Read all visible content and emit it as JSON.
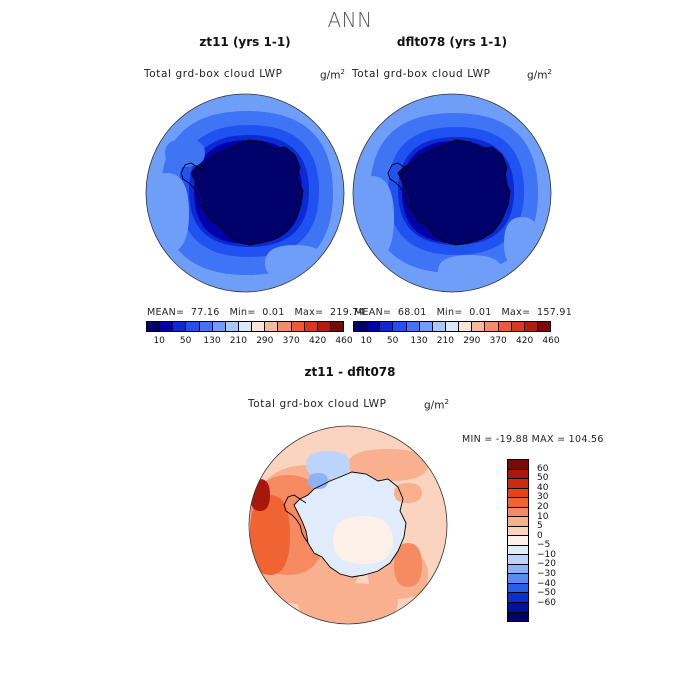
{
  "page_title": "ANN",
  "chart_data": [
    {
      "type": "heatmap",
      "title": "zt11 (yrs 1-1)",
      "variable_label": "Total grd-box cloud LWP",
      "units": "g/m",
      "units_exponent": "2",
      "stats": {
        "mean": "77.16",
        "min": "0.01",
        "max": "219.74"
      },
      "colorbar": {
        "levels": [
          "10",
          "50",
          "130",
          "210",
          "290",
          "370",
          "420",
          "460"
        ],
        "colors": [
          "#00006a",
          "#0000a8",
          "#0a2ad4",
          "#1f52f0",
          "#3f74f5",
          "#6f9ef8",
          "#a8c8fb",
          "#d8e8fd",
          "#fde4d6",
          "#f8b89c",
          "#f48c6a",
          "#ea5c36",
          "#d8391a",
          "#b21e0c",
          "#7a0a04"
        ]
      }
    },
    {
      "type": "heatmap",
      "title": "dflt078 (yrs 1-1)",
      "variable_label": "Total grd-box cloud LWP",
      "units": "g/m",
      "units_exponent": "2",
      "stats": {
        "mean": "68.01",
        "min": "0.01",
        "max": "157.91"
      },
      "colorbar": {
        "levels": [
          "10",
          "50",
          "130",
          "210",
          "290",
          "370",
          "420",
          "460"
        ],
        "colors": [
          "#00006a",
          "#0000a8",
          "#0a2ad4",
          "#1f52f0",
          "#3f74f5",
          "#6f9ef8",
          "#a8c8fb",
          "#d8e8fd",
          "#fde4d6",
          "#f8b89c",
          "#f48c6a",
          "#ea5c36",
          "#d8391a",
          "#b21e0c",
          "#7a0a04"
        ]
      }
    },
    {
      "type": "heatmap",
      "title": "zt11 - dflt078",
      "variable_label": "Total grd-box cloud LWP",
      "units": "g/m",
      "units_exponent": "2",
      "stats": {
        "min": "-19.88",
        "max": "104.56"
      },
      "stats_text": "MIN = -19.88 MAX = 104.56",
      "colorbar": {
        "levels": [
          "60",
          "50",
          "40",
          "30",
          "20",
          "10",
          "5",
          "0",
          "−5",
          "−10",
          "−20",
          "−30",
          "−40",
          "−50",
          "−60"
        ],
        "colors": [
          "#7a0a04",
          "#a8180a",
          "#cc2a10",
          "#e54418",
          "#f06434",
          "#f68a60",
          "#f9b08e",
          "#fbd4c0",
          "#fdf0e8",
          "#e0ecfc",
          "#bcd4fa",
          "#8cb2f7",
          "#5a8af3",
          "#2a5cea",
          "#0a30cc",
          "#0010a0",
          "#00006a"
        ]
      }
    }
  ]
}
